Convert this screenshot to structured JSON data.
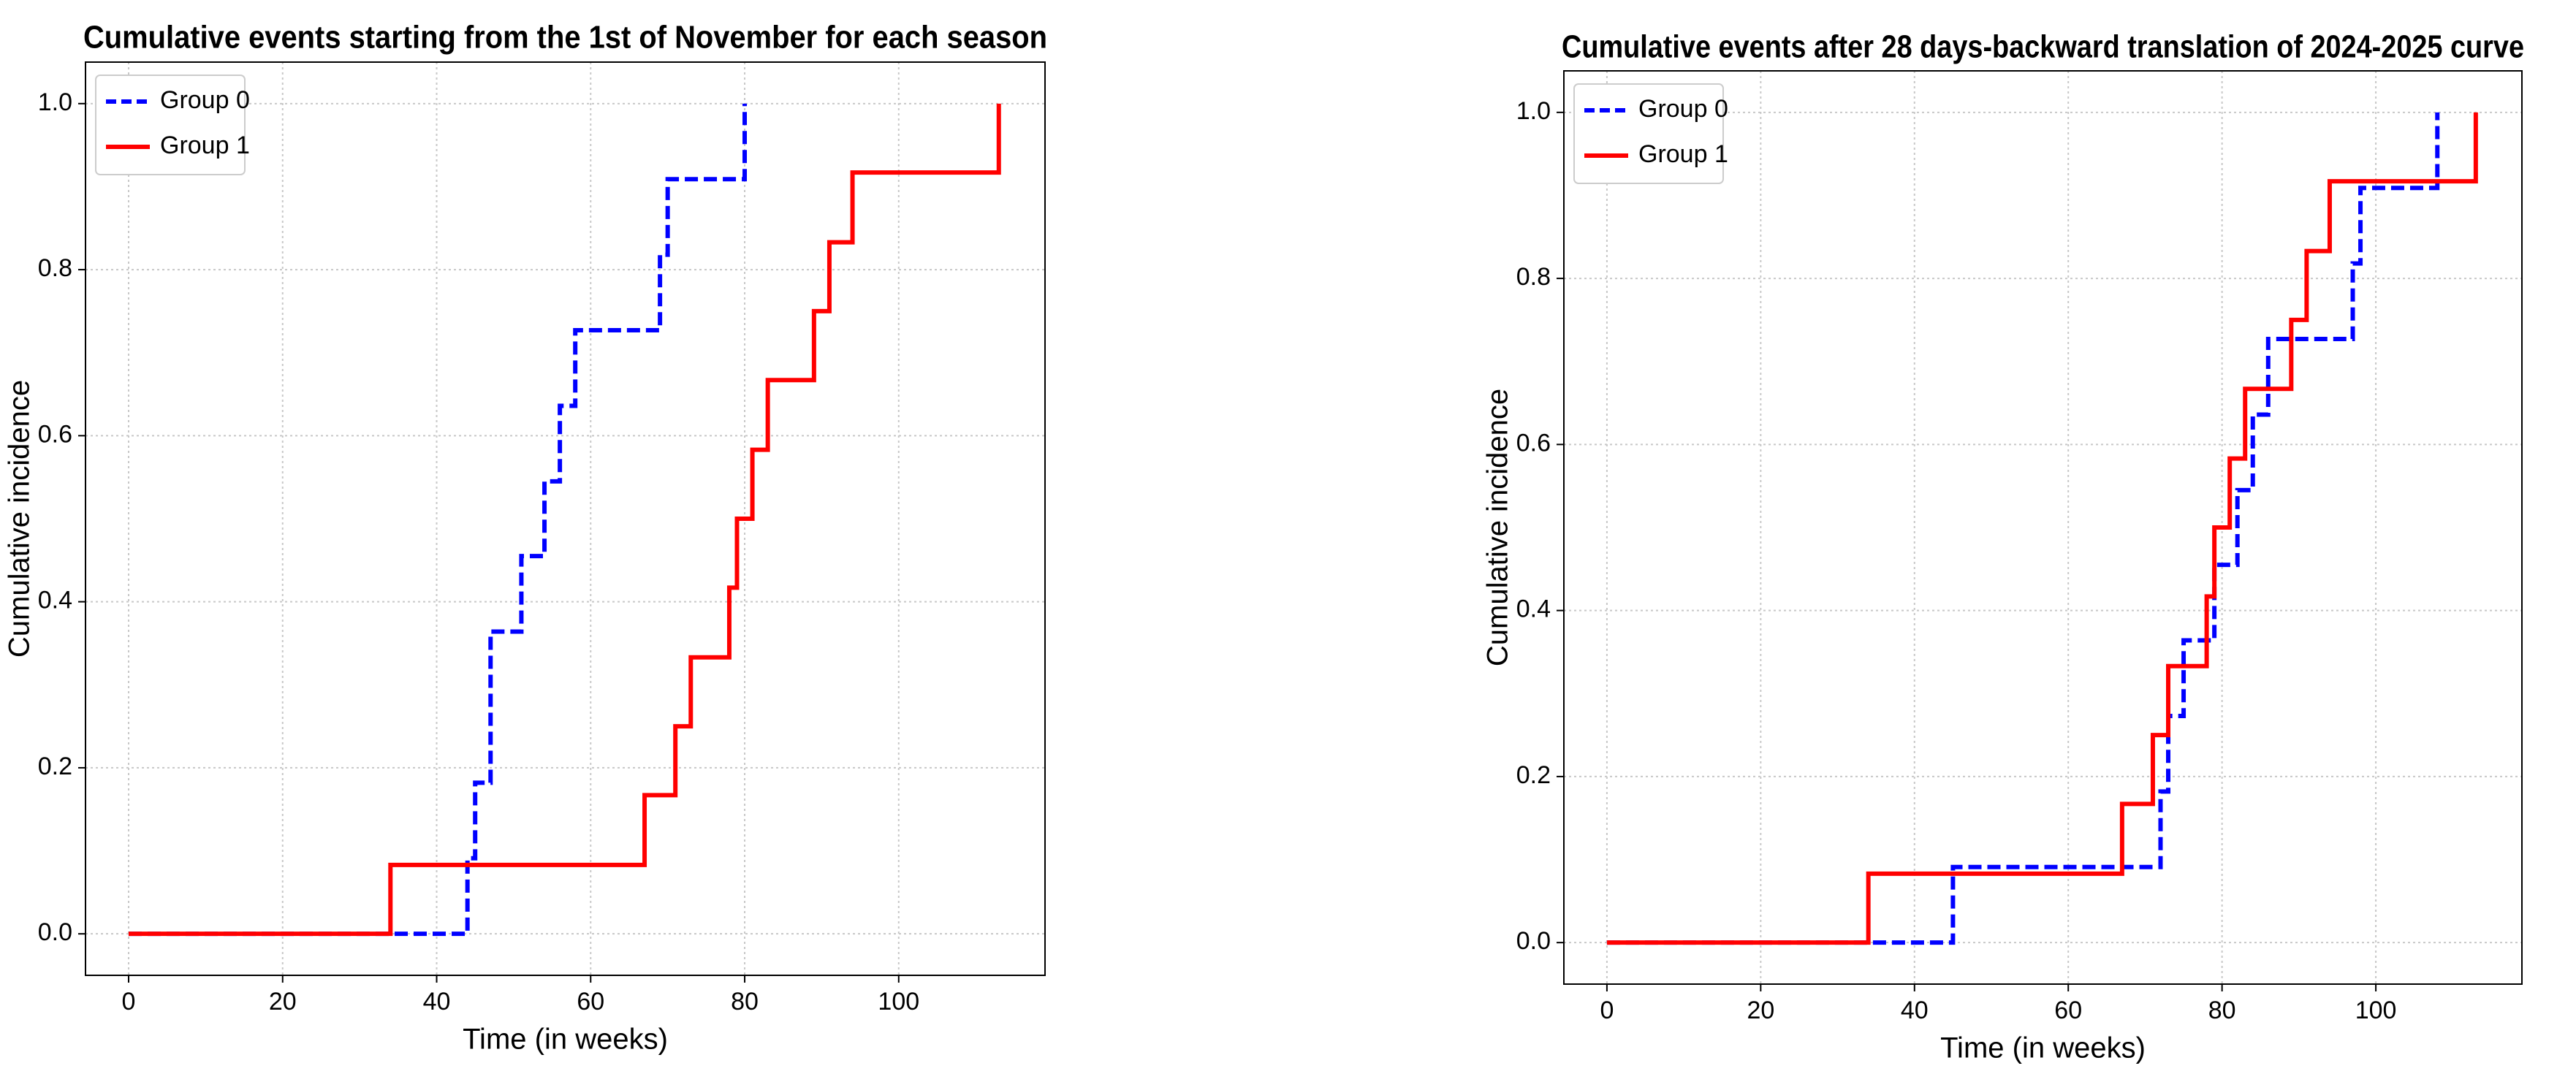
{
  "chart_data": [
    {
      "type": "line",
      "drawstyle": "steps-post",
      "title": "Cumulative events starting from the 1st of November for each season",
      "xlabel": "Time (in weeks)",
      "ylabel": "Cumulative incidence",
      "series": [
        {
          "name": "Group 0",
          "color": "#0000ff",
          "dashed": true,
          "x": [
            0,
            44,
            45,
            47,
            51,
            54,
            56,
            58,
            69,
            70,
            80
          ],
          "values": [
            0,
            0.091,
            0.182,
            0.364,
            0.455,
            0.545,
            0.636,
            0.727,
            0.818,
            0.909,
            1.0
          ]
        },
        {
          "name": "Group 1",
          "color": "#ff0000",
          "dashed": false,
          "x": [
            0,
            34,
            67,
            71,
            73,
            78,
            79,
            81,
            83,
            89,
            91,
            94,
            113
          ],
          "values": [
            0,
            0.083,
            0.167,
            0.25,
            0.333,
            0.417,
            0.5,
            0.583,
            0.667,
            0.75,
            0.833,
            0.917,
            1.0
          ]
        }
      ],
      "xlim": [
        -5.6,
        119
      ],
      "ylim": [
        -0.05,
        1.05
      ],
      "xticks": [
        0,
        20,
        40,
        60,
        80,
        100
      ],
      "yticks": [
        {
          "value": 0,
          "label": "0.0"
        },
        {
          "value": 0.2,
          "label": "0.2"
        },
        {
          "value": 0.4,
          "label": "0.4"
        },
        {
          "value": 0.6,
          "label": "0.6"
        },
        {
          "value": 0.8,
          "label": "0.8"
        },
        {
          "value": 1,
          "label": "1.0"
        }
      ],
      "grid": true,
      "legend": "upper left"
    },
    {
      "type": "line",
      "drawstyle": "steps-post",
      "title": "Cumulative events after 28 days-backward translation of 2024-2025 curve",
      "xlabel": "Time (in weeks)",
      "ylabel": "Cumulative incidence",
      "series": [
        {
          "name": "Group 0",
          "color": "#0000ff",
          "dashed": true,
          "x": [
            0,
            45,
            72,
            73,
            75,
            79,
            82,
            84,
            86,
            97,
            98,
            108
          ],
          "values": [
            0,
            0.091,
            0.182,
            0.273,
            0.364,
            0.455,
            0.545,
            0.636,
            0.727,
            0.818,
            0.909,
            1.0
          ]
        },
        {
          "name": "Group 1",
          "color": "#ff0000",
          "dashed": false,
          "x": [
            0,
            34,
            67,
            71,
            73,
            78,
            79,
            81,
            83,
            89,
            91,
            94,
            113
          ],
          "values": [
            0,
            0.083,
            0.167,
            0.25,
            0.333,
            0.417,
            0.5,
            0.583,
            0.667,
            0.75,
            0.833,
            0.917,
            1.0
          ]
        }
      ],
      "xlim": [
        -5.6,
        119
      ],
      "ylim": [
        -0.05,
        1.05
      ],
      "xticks": [
        0,
        20,
        40,
        60,
        80,
        100
      ],
      "yticks": [
        {
          "value": 0,
          "label": "0.0"
        },
        {
          "value": 0.2,
          "label": "0.2"
        },
        {
          "value": 0.4,
          "label": "0.4"
        },
        {
          "value": 0.6,
          "label": "0.6"
        },
        {
          "value": 0.8,
          "label": "0.8"
        },
        {
          "value": 1,
          "label": "1.0"
        }
      ],
      "grid": true,
      "legend": "upper left"
    }
  ]
}
